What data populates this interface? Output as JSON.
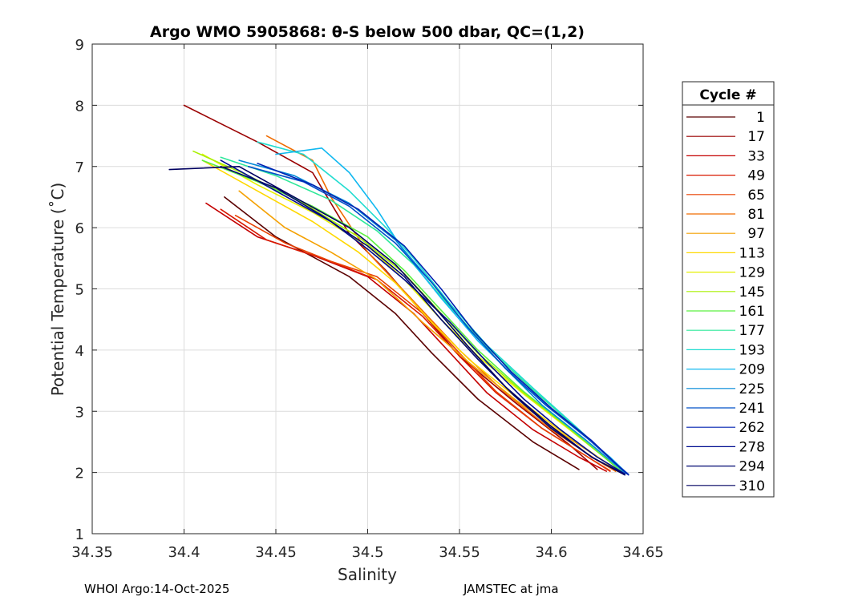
{
  "chart_data": {
    "type": "line",
    "title": "Argo WMO 5905868: θ-S below 500 dbar,  QC=(1,2)",
    "xlabel": "Salinity",
    "ylabel": "Potential Temperature (˚C)",
    "xlim": [
      34.35,
      34.65
    ],
    "ylim": [
      1,
      9
    ],
    "xticks": [
      34.35,
      34.4,
      34.45,
      34.5,
      34.55,
      34.6,
      34.65
    ],
    "xtick_labels": [
      "34.35",
      "34.4",
      "34.45",
      "34.5",
      "34.55",
      "34.6",
      "34.65"
    ],
    "yticks": [
      1,
      2,
      3,
      4,
      5,
      6,
      7,
      8,
      9
    ],
    "ytick_labels": [
      "1",
      "2",
      "3",
      "4",
      "5",
      "6",
      "7",
      "8",
      "9"
    ],
    "grid": true,
    "legend": {
      "title": "Cycle #",
      "placement": "right-outside",
      "entries": [
        {
          "label": "1",
          "color": "#5a0000"
        },
        {
          "label": "17",
          "color": "#9a0000"
        },
        {
          "label": "33",
          "color": "#c40000"
        },
        {
          "label": "49",
          "color": "#d81800"
        },
        {
          "label": "65",
          "color": "#e84000"
        },
        {
          "label": "81",
          "color": "#f06c00"
        },
        {
          "label": "97",
          "color": "#f4a000"
        },
        {
          "label": "113",
          "color": "#fed800"
        },
        {
          "label": "129",
          "color": "#e6f000"
        },
        {
          "label": "145",
          "color": "#a8f000"
        },
        {
          "label": "161",
          "color": "#5cf040"
        },
        {
          "label": "177",
          "color": "#2ee89a"
        },
        {
          "label": "193",
          "color": "#20dcd0"
        },
        {
          "label": "209",
          "color": "#10b8f0"
        },
        {
          "label": "225",
          "color": "#0088d8"
        },
        {
          "label": "241",
          "color": "#0050c8"
        },
        {
          "label": "262",
          "color": "#0020b0"
        },
        {
          "label": "278",
          "color": "#000c90"
        },
        {
          "label": "294",
          "color": "#000870"
        },
        {
          "label": "310",
          "color": "#000060"
        }
      ]
    },
    "series": [
      {
        "name": "1",
        "color": "#5a0000",
        "x": [
          34.422,
          34.45,
          34.49,
          34.515,
          34.535,
          34.56,
          34.59,
          34.615
        ],
        "y": [
          6.5,
          5.85,
          5.2,
          4.6,
          3.95,
          3.2,
          2.5,
          2.05
        ]
      },
      {
        "name": "17",
        "color": "#9a0000",
        "x": [
          34.4,
          34.42,
          34.44,
          34.47,
          34.49,
          34.51,
          34.53,
          34.55,
          34.58,
          34.61,
          34.625
        ],
        "y": [
          8.0,
          7.7,
          7.4,
          6.9,
          5.9,
          5.3,
          4.6,
          3.9,
          3.15,
          2.45,
          2.05
        ]
      },
      {
        "name": "33",
        "color": "#c40000",
        "x": [
          34.412,
          34.44,
          34.47,
          34.5,
          34.525,
          34.545,
          34.565,
          34.59,
          34.615,
          34.63
        ],
        "y": [
          6.4,
          5.85,
          5.55,
          5.2,
          4.6,
          3.95,
          3.3,
          2.7,
          2.25,
          2.02
        ]
      },
      {
        "name": "49",
        "color": "#d81800",
        "x": [
          34.42,
          34.445,
          34.475,
          34.505,
          34.53,
          34.55,
          34.57,
          34.595,
          34.62,
          34.632
        ],
        "y": [
          6.3,
          5.8,
          5.5,
          5.15,
          4.55,
          3.9,
          3.3,
          2.72,
          2.25,
          2.02
        ]
      },
      {
        "name": "65",
        "color": "#e84000",
        "x": [
          34.428,
          34.455,
          34.48,
          34.505,
          34.53,
          34.55,
          34.57,
          34.595,
          34.62,
          34.632
        ],
        "y": [
          6.2,
          5.75,
          5.45,
          5.2,
          4.6,
          3.95,
          3.32,
          2.72,
          2.25,
          2.03
        ]
      },
      {
        "name": "81",
        "color": "#f06c00",
        "x": [
          34.445,
          34.47,
          34.48,
          34.5,
          34.525,
          34.55,
          34.575,
          34.6,
          34.625,
          34.635
        ],
        "y": [
          7.5,
          7.1,
          6.5,
          5.6,
          4.8,
          4.0,
          3.3,
          2.7,
          2.2,
          2.02
        ]
      },
      {
        "name": "97",
        "color": "#f4a000",
        "x": [
          34.43,
          34.455,
          34.48,
          34.505,
          34.53,
          34.555,
          34.58,
          34.605,
          34.628,
          34.636
        ],
        "y": [
          6.6,
          6.0,
          5.6,
          5.15,
          4.45,
          3.8,
          3.2,
          2.65,
          2.2,
          2.02
        ]
      },
      {
        "name": "113",
        "color": "#fed800",
        "x": [
          34.41,
          34.44,
          34.47,
          34.495,
          34.515,
          34.535,
          34.555,
          34.58,
          34.605,
          34.628,
          34.637
        ],
        "y": [
          7.1,
          6.6,
          6.1,
          5.6,
          5.1,
          4.45,
          3.85,
          3.25,
          2.68,
          2.2,
          2.02
        ]
      },
      {
        "name": "129",
        "color": "#e6f000",
        "x": [
          34.41,
          34.44,
          34.47,
          34.5,
          34.52,
          34.54,
          34.56,
          34.585,
          34.61,
          34.63,
          34.638
        ],
        "y": [
          7.2,
          6.7,
          6.25,
          5.7,
          5.15,
          4.5,
          3.9,
          3.28,
          2.7,
          2.22,
          2.02
        ]
      },
      {
        "name": "145",
        "color": "#a8f000",
        "x": [
          34.405,
          34.435,
          34.465,
          34.495,
          34.52,
          34.54,
          34.56,
          34.585,
          34.61,
          34.63,
          34.638
        ],
        "y": [
          7.25,
          6.85,
          6.4,
          5.85,
          5.25,
          4.6,
          3.95,
          3.3,
          2.72,
          2.22,
          2.02
        ]
      },
      {
        "name": "161",
        "color": "#5cf040",
        "x": [
          34.41,
          34.44,
          34.47,
          34.5,
          34.52,
          34.54,
          34.56,
          34.585,
          34.61,
          34.63,
          34.638
        ],
        "y": [
          7.1,
          6.75,
          6.35,
          5.85,
          5.3,
          4.65,
          4.0,
          3.32,
          2.72,
          2.22,
          2.02
        ]
      },
      {
        "name": "177",
        "color": "#2ee89a",
        "x": [
          34.42,
          34.45,
          34.48,
          34.505,
          34.525,
          34.545,
          34.565,
          34.59,
          34.613,
          34.632,
          34.639
        ],
        "y": [
          7.15,
          6.85,
          6.45,
          5.95,
          5.4,
          4.7,
          4.05,
          3.35,
          2.75,
          2.23,
          2.02
        ]
      },
      {
        "name": "193",
        "color": "#20dcd0",
        "x": [
          34.44,
          34.465,
          34.49,
          34.51,
          34.525,
          34.545,
          34.565,
          34.59,
          34.613,
          34.632,
          34.639
        ],
        "y": [
          7.4,
          7.2,
          6.6,
          6.0,
          5.5,
          4.75,
          4.08,
          3.38,
          2.76,
          2.23,
          2.02
        ]
      },
      {
        "name": "209",
        "color": "#10b8f0",
        "x": [
          34.45,
          34.475,
          34.49,
          34.505,
          34.52,
          34.54,
          34.56,
          34.585,
          34.61,
          34.632,
          34.64
        ],
        "y": [
          7.2,
          7.3,
          6.9,
          6.3,
          5.6,
          4.85,
          4.15,
          3.42,
          2.8,
          2.25,
          2.02
        ]
      },
      {
        "name": "225",
        "color": "#0088d8",
        "x": [
          34.43,
          34.46,
          34.49,
          34.515,
          34.535,
          34.555,
          34.575,
          34.595,
          34.618,
          34.634,
          34.641
        ],
        "y": [
          7.1,
          6.85,
          6.4,
          5.8,
          5.1,
          4.35,
          3.7,
          3.1,
          2.55,
          2.15,
          1.98
        ]
      },
      {
        "name": "241",
        "color": "#0050c8",
        "x": [
          34.435,
          34.465,
          34.49,
          34.515,
          34.535,
          34.555,
          34.575,
          34.597,
          34.62,
          34.635,
          34.642
        ],
        "y": [
          7.0,
          6.75,
          6.35,
          5.75,
          5.1,
          4.35,
          3.7,
          3.1,
          2.55,
          2.15,
          1.97
        ]
      },
      {
        "name": "262",
        "color": "#0020b0",
        "x": [
          34.44,
          34.47,
          34.495,
          34.52,
          34.54,
          34.558,
          34.578,
          34.6,
          34.622,
          34.636,
          34.642
        ],
        "y": [
          7.05,
          6.7,
          6.3,
          5.7,
          5.0,
          4.3,
          3.65,
          3.05,
          2.52,
          2.12,
          1.96
        ]
      },
      {
        "name": "278",
        "color": "#000c90",
        "x": [
          34.42,
          34.45,
          34.48,
          34.5,
          34.52,
          34.545,
          34.565,
          34.585,
          34.605,
          34.625,
          34.64
        ],
        "y": [
          7.1,
          6.6,
          6.1,
          5.65,
          5.15,
          4.45,
          3.8,
          3.2,
          2.7,
          2.25,
          1.98
        ]
      },
      {
        "name": "294",
        "color": "#000870",
        "x": [
          34.42,
          34.45,
          34.475,
          34.5,
          34.52,
          34.54,
          34.56,
          34.58,
          34.6,
          34.622,
          34.638
        ],
        "y": [
          7.0,
          6.65,
          6.2,
          5.7,
          5.2,
          4.5,
          3.85,
          3.25,
          2.72,
          2.25,
          2.0
        ]
      },
      {
        "name": "310",
        "color": "#000060",
        "x": [
          34.392,
          34.43,
          34.46,
          34.49,
          34.515,
          34.535,
          34.555,
          34.575,
          34.6,
          34.622,
          34.64
        ],
        "y": [
          6.95,
          7.0,
          6.5,
          6.0,
          5.4,
          4.75,
          4.05,
          3.4,
          2.75,
          2.25,
          1.96
        ]
      }
    ]
  },
  "footer": {
    "left": "WHOI Argo:14-Oct-2025",
    "right": "JAMSTEC at jma"
  }
}
